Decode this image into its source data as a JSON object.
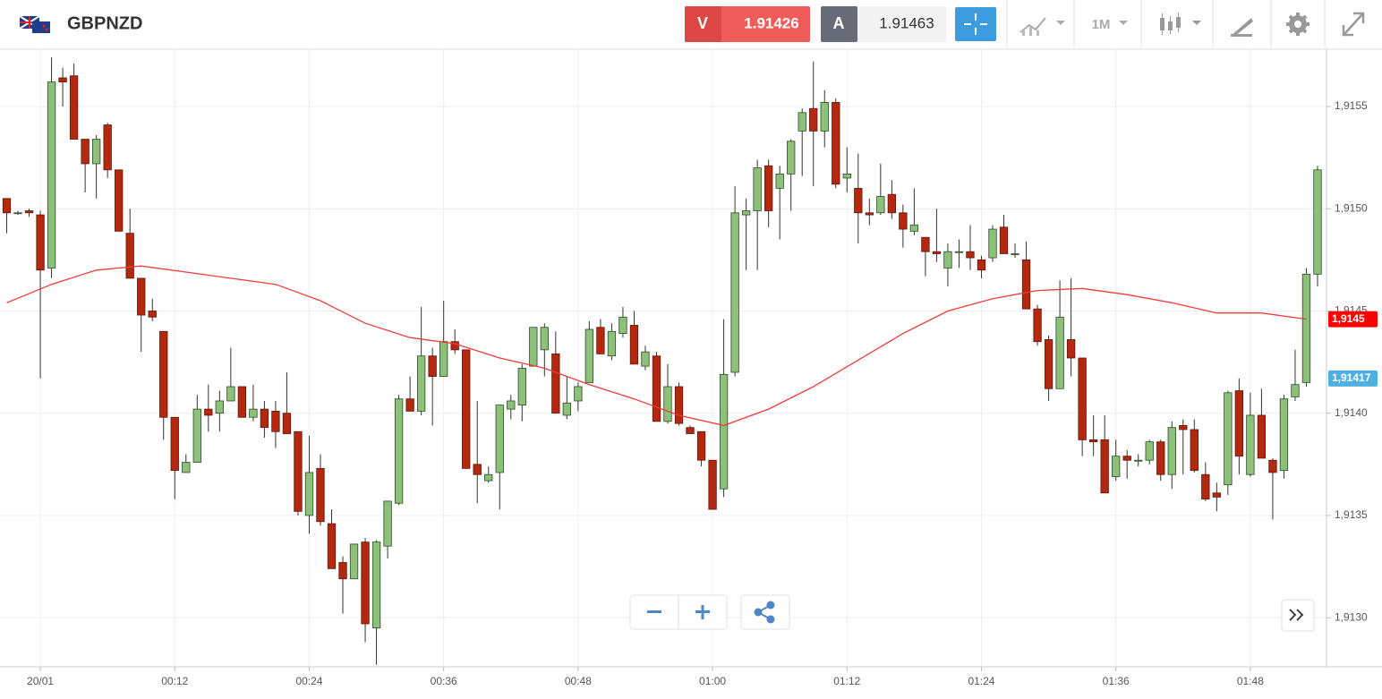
{
  "toolbar": {
    "symbol": "GBPNZD",
    "sell": {
      "label": "V",
      "price": 1.91426
    },
    "buy": {
      "label": "A",
      "price": 1.91463
    },
    "timeframe": "1M"
  },
  "chart_data": {
    "type": "candlestick",
    "x": [
      -3,
      -2,
      -1,
      0,
      1,
      2,
      3,
      4,
      5,
      6,
      7,
      8,
      9,
      10,
      11,
      12,
      13,
      14,
      15,
      16,
      17,
      18,
      19,
      20,
      21,
      22,
      23,
      24,
      25,
      26,
      27,
      28,
      29,
      30,
      31,
      32,
      33,
      34,
      35,
      36,
      37,
      38,
      39,
      40,
      41,
      42,
      43,
      44,
      45,
      46,
      47,
      48,
      49,
      50,
      51,
      52,
      53,
      54,
      55,
      56,
      57,
      58,
      59,
      60,
      61,
      62,
      63,
      64,
      65,
      66,
      67,
      68,
      69,
      70,
      71,
      72,
      73,
      74,
      75,
      76,
      77,
      78,
      79,
      80,
      81,
      82,
      83,
      84,
      85,
      86,
      87,
      88,
      89,
      90,
      91,
      92,
      93,
      94,
      95,
      96,
      97,
      98,
      99,
      100,
      101,
      102,
      103,
      104,
      105,
      106,
      107,
      108,
      109,
      110,
      111,
      112,
      113,
      114
    ],
    "open": [
      1.91505,
      1.91498,
      1.91499,
      1.91497,
      1.91471,
      1.91564,
      1.91565,
      1.91534,
      1.91522,
      1.91541,
      1.91519,
      1.91488,
      1.91466,
      1.9145,
      1.9144,
      1.91398,
      1.91371,
      1.91376,
      1.91402,
      1.914,
      1.91406,
      1.91413,
      1.91398,
      1.91402,
      1.91401,
      1.914,
      1.91391,
      1.9135,
      1.91373,
      1.91346,
      1.91327,
      1.91319,
      1.91337,
      1.91295,
      1.91335,
      1.91356,
      1.91407,
      1.91401,
      1.91428,
      1.91418,
      1.91435,
      1.91431,
      1.91375,
      1.91367,
      1.91371,
      1.91402,
      1.91404,
      1.91423,
      1.91431,
      1.91429,
      1.91399,
      1.91406,
      1.91415,
      1.91442,
      1.91428,
      1.91439,
      1.91443,
      1.91423,
      1.91428,
      1.91396,
      1.91413,
      1.91393,
      1.91391,
      1.91377,
      1.91363,
      1.9142,
      1.91497,
      1.91499,
      1.91521,
      1.9151,
      1.91517,
      1.91538,
      1.91549,
      1.91538,
      1.91552,
      1.91515,
      1.9151,
      1.91498,
      1.91498,
      1.91507,
      1.91498,
      1.91489,
      1.91486,
      1.91479,
      1.91471,
      1.91479,
      1.91479,
      1.91475,
      1.91476,
      1.91491,
      1.91478,
      1.91475,
      1.91451,
      1.91436,
      1.91412,
      1.91436,
      1.91427,
      1.91387,
      1.91387,
      1.91369,
      1.91379,
      1.91377,
      1.91377,
      1.91386,
      1.9137,
      1.91394,
      1.91392,
      1.9137,
      1.91361,
      1.91365,
      1.91411,
      1.9137,
      1.91399,
      1.91377,
      1.91372,
      1.91408,
      1.91415,
      1.91468
    ],
    "high": [
      1.91505,
      1.91499,
      1.915,
      1.91499,
      1.91574,
      1.91569,
      1.91571,
      1.91534,
      1.91536,
      1.91542,
      1.91519,
      1.915,
      1.91466,
      1.91456,
      1.9144,
      1.91398,
      1.9138,
      1.91409,
      1.91414,
      1.91411,
      1.91432,
      1.91413,
      1.91414,
      1.91406,
      1.91406,
      1.9142,
      1.91391,
      1.91389,
      1.9138,
      1.91353,
      1.9133,
      1.91336,
      1.91339,
      1.91338,
      1.91357,
      1.91409,
      1.91418,
      1.91452,
      1.91432,
      1.91455,
      1.91441,
      1.91431,
      1.91406,
      1.91374,
      1.91404,
      1.91409,
      1.91424,
      1.91442,
      1.91444,
      1.9144,
      1.91418,
      1.91415,
      1.91445,
      1.91446,
      1.91444,
      1.91452,
      1.9145,
      1.91433,
      1.9143,
      1.91424,
      1.91415,
      1.91394,
      1.91391,
      1.91377,
      1.91446,
      1.91511,
      1.91505,
      1.91524,
      1.91524,
      1.91521,
      1.91534,
      1.91549,
      1.91572,
      1.91558,
      1.91554,
      1.9153,
      1.91527,
      1.91505,
      1.91522,
      1.91514,
      1.91502,
      1.9151,
      1.91486,
      1.915,
      1.91483,
      1.91485,
      1.91492,
      1.91477,
      1.91492,
      1.91497,
      1.91483,
      1.91484,
      1.91453,
      1.91438,
      1.91465,
      1.91466,
      1.91427,
      1.91399,
      1.91399,
      1.91387,
      1.91382,
      1.9138,
      1.91387,
      1.91387,
      1.91396,
      1.91397,
      1.91397,
      1.91376,
      1.91366,
      1.91411,
      1.91417,
      1.9141,
      1.91412,
      1.91378,
      1.91409,
      1.91431,
      1.91471,
      1.91521
    ],
    "low": [
      1.91488,
      1.91497,
      1.91496,
      1.91417,
      1.91466,
      1.9155,
      1.91534,
      1.91508,
      1.91505,
      1.91515,
      1.91489,
      1.91466,
      1.9143,
      1.91445,
      1.91387,
      1.91358,
      1.91371,
      1.91376,
      1.91391,
      1.91391,
      1.91406,
      1.91398,
      1.91396,
      1.91388,
      1.91383,
      1.9139,
      1.9135,
      1.91341,
      1.91345,
      1.91324,
      1.91302,
      1.91319,
      1.91288,
      1.91277,
      1.91329,
      1.91355,
      1.91401,
      1.91399,
      1.91394,
      1.91418,
      1.91429,
      1.91373,
      1.91356,
      1.91366,
      1.91353,
      1.91397,
      1.91396,
      1.91423,
      1.91418,
      1.914,
      1.91397,
      1.91401,
      1.91415,
      1.91429,
      1.91426,
      1.91437,
      1.91424,
      1.91421,
      1.91396,
      1.91395,
      1.91394,
      1.9139,
      1.91374,
      1.91353,
      1.91359,
      1.91418,
      1.9147,
      1.9147,
      1.91491,
      1.91485,
      1.91499,
      1.91516,
      1.91511,
      1.9153,
      1.9151,
      1.91508,
      1.91483,
      1.91492,
      1.91497,
      1.91495,
      1.91481,
      1.91487,
      1.91467,
      1.91474,
      1.91462,
      1.91471,
      1.9147,
      1.91466,
      1.91474,
      1.91478,
      1.91476,
      1.91451,
      1.91433,
      1.91406,
      1.91412,
      1.91418,
      1.91379,
      1.91379,
      1.91361,
      1.91367,
      1.91368,
      1.91374,
      1.91375,
      1.91367,
      1.91363,
      1.9137,
      1.91371,
      1.91357,
      1.91352,
      1.9136,
      1.9137,
      1.91369,
      1.91378,
      1.91348,
      1.91368,
      1.91406,
      1.91413,
      1.91462
    ],
    "close": [
      1.91498,
      1.91498,
      1.91498,
      1.9147,
      1.91562,
      1.91562,
      1.91534,
      1.91522,
      1.91534,
      1.91519,
      1.91489,
      1.91466,
      1.91448,
      1.91447,
      1.91398,
      1.91372,
      1.91376,
      1.91402,
      1.91399,
      1.91406,
      1.91413,
      1.91398,
      1.91402,
      1.91393,
      1.91391,
      1.9139,
      1.91352,
      1.91371,
      1.91347,
      1.91324,
      1.91319,
      1.91336,
      1.91297,
      1.91337,
      1.91357,
      1.91407,
      1.91401,
      1.91428,
      1.91418,
      1.91435,
      1.91431,
      1.91373,
      1.9137,
      1.9137,
      1.91404,
      1.91406,
      1.91422,
      1.91442,
      1.91442,
      1.914,
      1.91405,
      1.91413,
      1.91441,
      1.91429,
      1.9144,
      1.91447,
      1.91424,
      1.9143,
      1.91396,
      1.91413,
      1.91395,
      1.9139,
      1.91377,
      1.91353,
      1.91419,
      1.91498,
      1.91499,
      1.9152,
      1.91499,
      1.91517,
      1.91533,
      1.91547,
      1.91538,
      1.91552,
      1.91512,
      1.91517,
      1.91498,
      1.91497,
      1.91506,
      1.91498,
      1.9149,
      1.91492,
      1.91479,
      1.91478,
      1.91479,
      1.91479,
      1.91476,
      1.9147,
      1.9149,
      1.91478,
      1.91478,
      1.91451,
      1.91435,
      1.91412,
      1.91447,
      1.91427,
      1.91387,
      1.91386,
      1.91361,
      1.91379,
      1.91377,
      1.91377,
      1.91386,
      1.9137,
      1.91393,
      1.91392,
      1.91372,
      1.91358,
      1.91359,
      1.9141,
      1.91379,
      1.91399,
      1.91378,
      1.91371,
      1.91407,
      1.91414,
      1.91468,
      1.91519
    ],
    "up_color": "#8dc07a",
    "down_color": "#b3280f",
    "overlay": {
      "color": "#f03c3c",
      "x": [
        -3,
        1,
        5,
        9,
        13,
        17,
        21,
        25,
        29,
        33,
        37,
        41,
        45,
        49,
        53,
        57,
        61,
        65,
        69,
        73,
        77,
        81,
        85,
        89,
        93,
        97,
        101,
        105,
        109,
        113
      ],
      "values": [
        1.91454,
        1.91463,
        1.9147,
        1.91472,
        1.91469,
        1.91466,
        1.91463,
        1.91455,
        1.91444,
        1.91437,
        1.91434,
        1.91427,
        1.91422,
        1.91414,
        1.91407,
        1.91399,
        1.91394,
        1.91402,
        1.91413,
        1.91426,
        1.91439,
        1.9145,
        1.91456,
        1.9146,
        1.91461,
        1.91458,
        1.91454,
        1.91449,
        1.91449,
        1.91446
      ]
    },
    "overlay_label": {
      "value": 1.91446,
      "label": "1,9145",
      "color": "#ff0000"
    },
    "price_label": {
      "value": 1.91417,
      "label": "1,91417",
      "color": "#4fb0e0"
    },
    "xlim": [
      -3.6,
      114.8
    ],
    "xticks": [
      {
        "value": 0,
        "label": "20/01"
      },
      {
        "value": 12,
        "label": "00:12"
      },
      {
        "value": 24,
        "label": "00:24"
      },
      {
        "value": 36,
        "label": "00:36"
      },
      {
        "value": 48,
        "label": "00:48"
      },
      {
        "value": 60,
        "label": "01:00"
      },
      {
        "value": 72,
        "label": "01:12"
      },
      {
        "value": 84,
        "label": "01:24"
      },
      {
        "value": 96,
        "label": "01:36"
      },
      {
        "value": 108,
        "label": "01:48"
      }
    ],
    "ylim": [
      1.91276,
      1.91578
    ],
    "yticks": [
      {
        "value": 1.913,
        "label": "1,9130"
      },
      {
        "value": 1.9135,
        "label": "1,9135"
      },
      {
        "value": 1.914,
        "label": "1,9140"
      },
      {
        "value": 1.9145,
        "label": "1,9145"
      },
      {
        "value": 1.915,
        "label": "1,9150"
      },
      {
        "value": 1.9155,
        "label": "1,9155"
      }
    ],
    "grid": true
  }
}
